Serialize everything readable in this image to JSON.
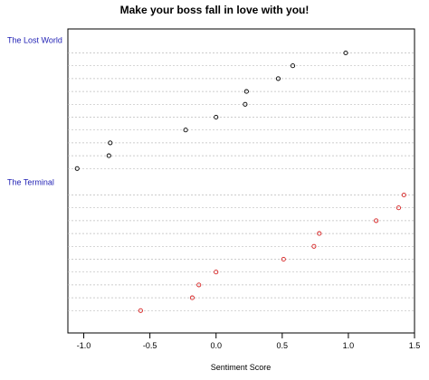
{
  "chart_data": {
    "type": "scatter",
    "title": "Make your boss fall in love with you!",
    "xlabel": "Sentiment Score",
    "ylabel": "",
    "xlim": [
      -1.12,
      1.5
    ],
    "x_ticks": [
      "-1.0",
      "-0.5",
      "0.0",
      "0.5",
      "1.0",
      "1.5"
    ],
    "x_tick_values": [
      -1.0,
      -0.5,
      0.0,
      0.5,
      1.0,
      1.5
    ],
    "grid": "horizontal dotted",
    "groups": [
      {
        "label": "The Lost World",
        "label_color": "#1f1fb4",
        "point_color": "#000000",
        "values": [
          0.98,
          0.58,
          0.47,
          0.23,
          0.22,
          0.0,
          -0.23,
          -0.8,
          -0.81,
          -1.05
        ]
      },
      {
        "label": "The Terminal",
        "label_color": "#1f1fb4",
        "point_color": "#d62020",
        "values": [
          1.42,
          1.38,
          1.21,
          0.78,
          0.74,
          0.51,
          0.0,
          -0.13,
          -0.18,
          -0.57
        ]
      }
    ]
  }
}
